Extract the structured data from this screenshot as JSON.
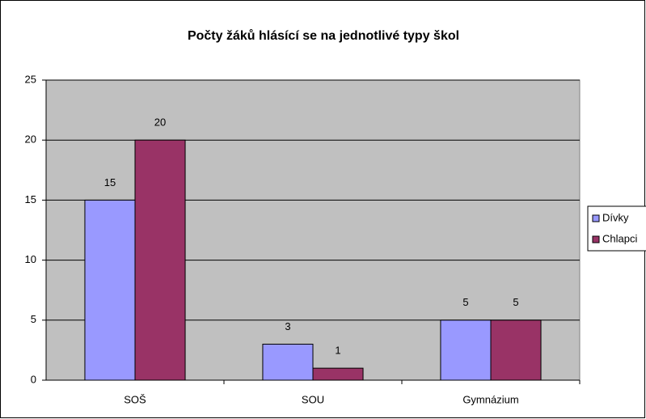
{
  "chart_data": {
    "type": "bar",
    "title": "Počty žáků hlásící se na jednotlivé typy škol",
    "categories": [
      "SOŠ",
      "SOU",
      "Gymnázium"
    ],
    "series": [
      {
        "name": "Dívky",
        "color": "#9999ff",
        "values": [
          15,
          3,
          5
        ]
      },
      {
        "name": "Chlapci",
        "color": "#993366",
        "values": [
          20,
          1,
          5
        ]
      }
    ],
    "ylim": [
      0,
      25
    ],
    "yticks": [
      0,
      5,
      10,
      15,
      20,
      25
    ],
    "grid": true,
    "legend": "right"
  }
}
